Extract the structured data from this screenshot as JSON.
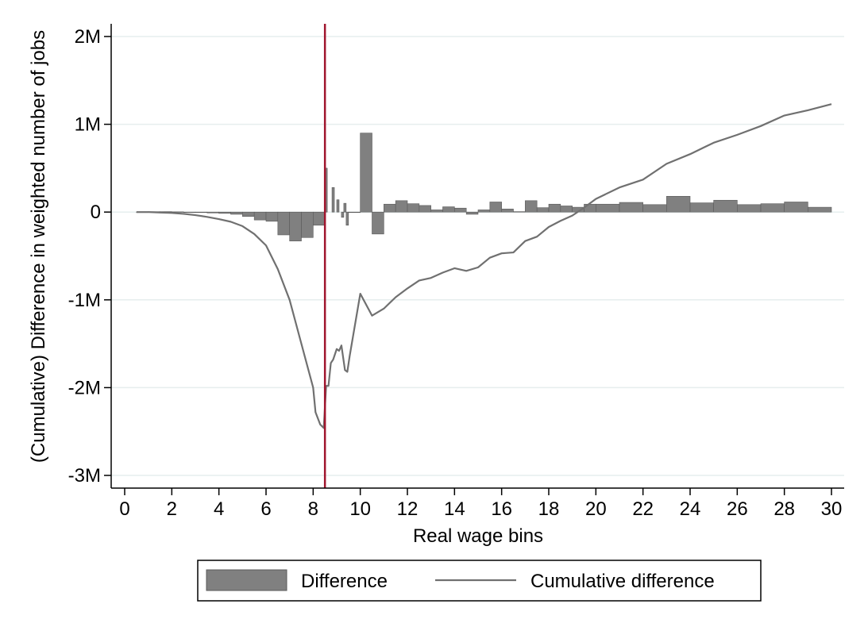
{
  "chart_data": {
    "type": "bar",
    "xlabel": "Real wage bins",
    "ylabel": "(Cumulative) Difference in weighted number of jobs",
    "xlim": [
      0,
      30
    ],
    "ylim": [
      -3000000,
      2000000
    ],
    "x_ticks": [
      0,
      2,
      4,
      6,
      8,
      10,
      12,
      14,
      16,
      18,
      20,
      22,
      24,
      26,
      28,
      30
    ],
    "x_tick_labels": [
      "0",
      "2",
      "4",
      "6",
      "8",
      "10",
      "12",
      "14",
      "16",
      "18",
      "20",
      "22",
      "24",
      "26",
      "28",
      "30"
    ],
    "y_ticks": [
      -3000000,
      -2000000,
      -1000000,
      0,
      1000000,
      2000000
    ],
    "y_tick_labels": [
      "-3M",
      "-2M",
      "-1M",
      "0",
      "1M",
      "2M"
    ],
    "grid": "horizontal",
    "legend_position": "bottom",
    "vertical_line_x": 8.5,
    "colors": {
      "bars": "#808080",
      "bar_stroke": "#5a5a5a",
      "line": "#707070",
      "vline": "#a0162e",
      "grid": "#e6eeee"
    },
    "series": [
      {
        "name": "Difference",
        "kind": "bar",
        "bars": [
          {
            "x0": 0.5,
            "x1": 1.0,
            "v": 0
          },
          {
            "x0": 1.0,
            "x1": 1.5,
            "v": 5000
          },
          {
            "x0": 1.5,
            "x1": 2.0,
            "v": 5000
          },
          {
            "x0": 2.0,
            "x1": 2.5,
            "v": 3000
          },
          {
            "x0": 2.5,
            "x1": 3.0,
            "v": -5000
          },
          {
            "x0": 3.0,
            "x1": 3.5,
            "v": -5000
          },
          {
            "x0": 3.5,
            "x1": 4.0,
            "v": -10000
          },
          {
            "x0": 4.0,
            "x1": 4.5,
            "v": -15000
          },
          {
            "x0": 4.5,
            "x1": 5.0,
            "v": -25000
          },
          {
            "x0": 5.0,
            "x1": 5.5,
            "v": -50000
          },
          {
            "x0": 5.5,
            "x1": 6.0,
            "v": -90000
          },
          {
            "x0": 6.0,
            "x1": 6.5,
            "v": -105000
          },
          {
            "x0": 6.5,
            "x1": 7.0,
            "v": -260000
          },
          {
            "x0": 7.0,
            "x1": 7.5,
            "v": -330000
          },
          {
            "x0": 7.5,
            "x1": 8.0,
            "v": -290000
          },
          {
            "x0": 8.0,
            "x1": 8.5,
            "v": -150000
          },
          {
            "x0": 8.5,
            "x1": 8.6,
            "v": 500000
          },
          {
            "x0": 8.8,
            "x1": 8.9,
            "v": 280000
          },
          {
            "x0": 9.0,
            "x1": 9.1,
            "v": 140000
          },
          {
            "x0": 9.2,
            "x1": 9.3,
            "v": -60000
          },
          {
            "x0": 9.3,
            "x1": 9.4,
            "v": 100000
          },
          {
            "x0": 9.4,
            "x1": 9.5,
            "v": -150000
          },
          {
            "x0": 9.5,
            "x1": 10.0,
            "v": 0
          },
          {
            "x0": 10.0,
            "x1": 10.5,
            "v": 900000
          },
          {
            "x0": 10.5,
            "x1": 11.0,
            "v": -250000
          },
          {
            "x0": 11.0,
            "x1": 11.5,
            "v": 90000
          },
          {
            "x0": 11.5,
            "x1": 12.0,
            "v": 130000
          },
          {
            "x0": 12.0,
            "x1": 12.5,
            "v": 95000
          },
          {
            "x0": 12.5,
            "x1": 13.0,
            "v": 75000
          },
          {
            "x0": 13.0,
            "x1": 13.5,
            "v": 25000
          },
          {
            "x0": 13.5,
            "x1": 14.0,
            "v": 60000
          },
          {
            "x0": 14.0,
            "x1": 14.5,
            "v": 45000
          },
          {
            "x0": 14.5,
            "x1": 15.0,
            "v": -25000
          },
          {
            "x0": 15.0,
            "x1": 15.5,
            "v": 25000
          },
          {
            "x0": 15.5,
            "x1": 16.0,
            "v": 115000
          },
          {
            "x0": 16.0,
            "x1": 16.5,
            "v": 35000
          },
          {
            "x0": 16.5,
            "x1": 17.0,
            "v": 5000
          },
          {
            "x0": 17.0,
            "x1": 17.5,
            "v": 130000
          },
          {
            "x0": 17.5,
            "x1": 18.0,
            "v": 50000
          },
          {
            "x0": 18.0,
            "x1": 18.5,
            "v": 90000
          },
          {
            "x0": 18.5,
            "x1": 19.0,
            "v": 70000
          },
          {
            "x0": 19.0,
            "x1": 19.5,
            "v": 55000
          },
          {
            "x0": 19.5,
            "x1": 20.0,
            "v": 90000
          },
          {
            "x0": 20.0,
            "x1": 21.0,
            "v": 90000
          },
          {
            "x0": 21.0,
            "x1": 22.0,
            "v": 110000
          },
          {
            "x0": 22.0,
            "x1": 23.0,
            "v": 85000
          },
          {
            "x0": 23.0,
            "x1": 24.0,
            "v": 180000
          },
          {
            "x0": 24.0,
            "x1": 25.0,
            "v": 105000
          },
          {
            "x0": 25.0,
            "x1": 26.0,
            "v": 135000
          },
          {
            "x0": 26.0,
            "x1": 27.0,
            "v": 85000
          },
          {
            "x0": 27.0,
            "x1": 28.0,
            "v": 95000
          },
          {
            "x0": 28.0,
            "x1": 29.0,
            "v": 115000
          },
          {
            "x0": 29.0,
            "x1": 30.0,
            "v": 55000
          }
        ]
      },
      {
        "name": "Cumulative difference",
        "kind": "line",
        "x": [
          0.5,
          1.0,
          1.5,
          2.0,
          2.5,
          3.0,
          3.5,
          4.0,
          4.5,
          5.0,
          5.5,
          6.0,
          6.5,
          7.0,
          7.5,
          8.0,
          8.1,
          8.3,
          8.45,
          8.55,
          8.65,
          8.75,
          8.85,
          9.0,
          9.1,
          9.2,
          9.35,
          9.45,
          9.55,
          10.0,
          10.5,
          11.0,
          11.5,
          12.0,
          12.5,
          13.0,
          13.5,
          14.0,
          14.5,
          15.0,
          15.5,
          16.0,
          16.5,
          17.0,
          17.5,
          18.0,
          18.5,
          19.0,
          19.5,
          20.0,
          21.0,
          22.0,
          23.0,
          24.0,
          25.0,
          26.0,
          27.0,
          28.0,
          29.0,
          30.0
        ],
        "y": [
          0,
          0,
          -5000,
          -10000,
          -20000,
          -35000,
          -55000,
          -80000,
          -110000,
          -160000,
          -250000,
          -380000,
          -650000,
          -1000000,
          -1500000,
          -2000000,
          -2280000,
          -2420000,
          -2460000,
          -1980000,
          -1980000,
          -1720000,
          -1680000,
          -1560000,
          -1580000,
          -1520000,
          -1800000,
          -1820000,
          -1640000,
          -930000,
          -1180000,
          -1100000,
          -970000,
          -870000,
          -780000,
          -750000,
          -690000,
          -640000,
          -670000,
          -630000,
          -520000,
          -470000,
          -460000,
          -330000,
          -280000,
          -170000,
          -100000,
          -40000,
          50000,
          150000,
          280000,
          370000,
          550000,
          660000,
          790000,
          880000,
          980000,
          1100000,
          1160000,
          1230000
        ]
      }
    ]
  }
}
